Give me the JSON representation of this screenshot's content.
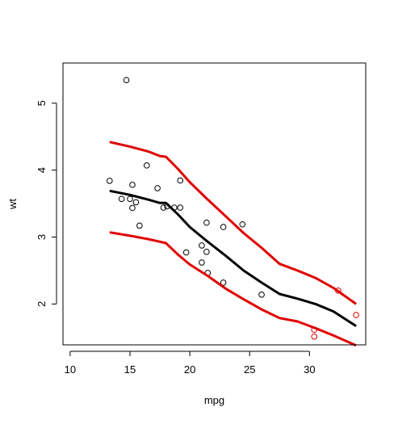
{
  "chart_data": {
    "type": "scatter",
    "title": "",
    "xlabel": "mpg",
    "ylabel": "wt",
    "xlim": [
      9.4,
      34.7
    ],
    "ylim": [
      1.39,
      5.6
    ],
    "x_ticks": [
      10,
      15,
      20,
      25,
      30
    ],
    "y_ticks": [
      2,
      3,
      4,
      5
    ],
    "grid": false,
    "legend": "none",
    "colors": {
      "points": "#000000",
      "points_flagged": "#e00000",
      "fit_line": "#000000",
      "band_lines": "#e00000"
    },
    "series": [
      {
        "type": "scatter",
        "points": [
          [
            21.0,
            2.62
          ],
          [
            21.0,
            2.875
          ],
          [
            22.8,
            2.32
          ],
          [
            21.4,
            3.215
          ],
          [
            18.7,
            3.44
          ],
          [
            18.1,
            3.46
          ],
          [
            14.3,
            3.57
          ],
          [
            24.4,
            3.19
          ],
          [
            22.8,
            3.15
          ],
          [
            19.2,
            3.44
          ],
          [
            17.8,
            3.44
          ],
          [
            16.4,
            4.07
          ],
          [
            17.3,
            3.73
          ],
          [
            15.2,
            3.78
          ],
          [
            14.7,
            5.345
          ],
          [
            13.3,
            3.84
          ],
          [
            15.0,
            3.57
          ],
          [
            15.2,
            3.435
          ],
          [
            15.5,
            3.52
          ],
          [
            19.2,
            3.845
          ],
          [
            15.8,
            3.17
          ],
          [
            19.7,
            2.77
          ],
          [
            21.5,
            2.465
          ],
          [
            26.0,
            2.14
          ],
          [
            21.4,
            2.78
          ]
        ]
      },
      {
        "type": "scatter",
        "color": "red",
        "points": [
          [
            32.4,
            2.2
          ],
          [
            30.4,
            1.615
          ],
          [
            33.9,
            1.835
          ],
          [
            30.4,
            1.513
          ]
        ]
      },
      {
        "type": "line",
        "color": "black",
        "points": [
          [
            13.3,
            3.69
          ],
          [
            15.0,
            3.63
          ],
          [
            16.5,
            3.56
          ],
          [
            17.5,
            3.51
          ],
          [
            18.0,
            3.51
          ],
          [
            19.0,
            3.34
          ],
          [
            20.0,
            3.15
          ],
          [
            21.5,
            2.93
          ],
          [
            23.0,
            2.72
          ],
          [
            24.5,
            2.5
          ],
          [
            26.0,
            2.32
          ],
          [
            27.5,
            2.15
          ],
          [
            29.0,
            2.08
          ],
          [
            30.5,
            2.0
          ],
          [
            32.0,
            1.89
          ],
          [
            33.9,
            1.67
          ]
        ]
      },
      {
        "type": "line",
        "color": "red",
        "points": [
          [
            13.3,
            4.42
          ],
          [
            15.0,
            4.35
          ],
          [
            16.5,
            4.28
          ],
          [
            17.5,
            4.21
          ],
          [
            18.0,
            4.2
          ],
          [
            19.0,
            4.02
          ],
          [
            20.0,
            3.82
          ],
          [
            21.5,
            3.56
          ],
          [
            23.0,
            3.31
          ],
          [
            24.5,
            3.06
          ],
          [
            26.0,
            2.84
          ],
          [
            27.5,
            2.6
          ],
          [
            29.0,
            2.5
          ],
          [
            30.5,
            2.39
          ],
          [
            32.0,
            2.24
          ],
          [
            33.9,
            2.0
          ]
        ]
      },
      {
        "type": "line",
        "color": "red",
        "points": [
          [
            13.3,
            3.07
          ],
          [
            15.0,
            3.02
          ],
          [
            16.5,
            2.97
          ],
          [
            17.5,
            2.93
          ],
          [
            18.0,
            2.91
          ],
          [
            19.0,
            2.74
          ],
          [
            20.0,
            2.59
          ],
          [
            21.5,
            2.42
          ],
          [
            23.0,
            2.23
          ],
          [
            24.5,
            2.07
          ],
          [
            26.0,
            1.92
          ],
          [
            27.5,
            1.79
          ],
          [
            29.0,
            1.74
          ],
          [
            30.5,
            1.64
          ],
          [
            32.0,
            1.53
          ],
          [
            33.9,
            1.38
          ]
        ]
      }
    ]
  }
}
